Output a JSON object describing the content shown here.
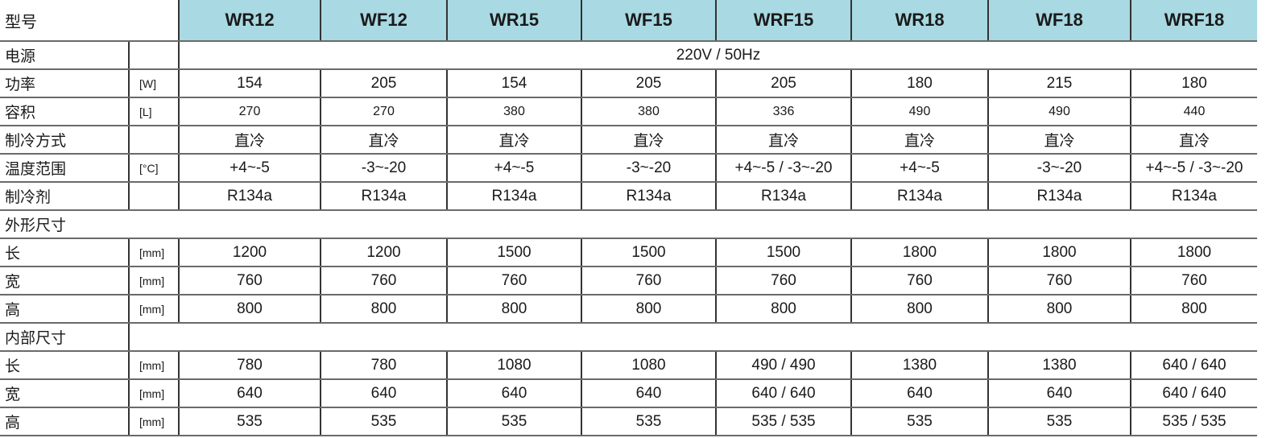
{
  "header": {
    "label": "型号",
    "models": [
      "WR12",
      "WF12",
      "WR15",
      "WF15",
      "WRF15",
      "WR18",
      "WF18",
      "WRF18"
    ]
  },
  "rows": [
    {
      "label": "电源",
      "unit": "",
      "span": "220V / 50Hz"
    },
    {
      "label": "功率",
      "unit": "[W]",
      "values": [
        "154",
        "205",
        "154",
        "205",
        "205",
        "180",
        "215",
        "180"
      ]
    },
    {
      "label": "容积",
      "unit": "[L]",
      "values": [
        "270",
        "270",
        "380",
        "380",
        "336",
        "490",
        "490",
        "440"
      ]
    },
    {
      "label": "制冷方式",
      "unit": "",
      "values": [
        "直冷",
        "直冷",
        "直冷",
        "直冷",
        "直冷",
        "直冷",
        "直冷",
        "直冷"
      ]
    },
    {
      "label": "温度范围",
      "unit": "[°C]",
      "values": [
        "+4~-5",
        "-3~-20",
        "+4~-5",
        "-3~-20",
        "+4~-5 / -3~-20",
        "+4~-5",
        "-3~-20",
        "+4~-5 / -3~-20"
      ]
    },
    {
      "label": "制冷剂",
      "unit": "",
      "values": [
        "R134a",
        "R134a",
        "R134a",
        "R134a",
        "R134a",
        "R134a",
        "R134a",
        "R134a"
      ]
    }
  ],
  "external": {
    "title": "外形尺寸",
    "rows": [
      {
        "label": "长",
        "unit": "[mm]",
        "values": [
          "1200",
          "1200",
          "1500",
          "1500",
          "1500",
          "1800",
          "1800",
          "1800"
        ]
      },
      {
        "label": "宽",
        "unit": "[mm]",
        "values": [
          "760",
          "760",
          "760",
          "760",
          "760",
          "760",
          "760",
          "760"
        ]
      },
      {
        "label": "高",
        "unit": "[mm]",
        "values": [
          "800",
          "800",
          "800",
          "800",
          "800",
          "800",
          "800",
          "800"
        ]
      }
    ]
  },
  "internal": {
    "title": "内部尺寸",
    "rows": [
      {
        "label": "长",
        "unit": "[mm]",
        "values": [
          "780",
          "780",
          "1080",
          "1080",
          "490 / 490",
          "1380",
          "1380",
          "640 / 640"
        ]
      },
      {
        "label": "宽",
        "unit": "[mm]",
        "values": [
          "640",
          "640",
          "640",
          "640",
          "640 / 640",
          "640",
          "640",
          "640 / 640"
        ]
      },
      {
        "label": "高",
        "unit": "[mm]",
        "values": [
          "535",
          "535",
          "535",
          "535",
          "535 / 535",
          "535",
          "535",
          "535 / 535"
        ]
      }
    ]
  },
  "colors": {
    "header_bg": "#a9d9e2",
    "lines": "#6a6a6a"
  }
}
